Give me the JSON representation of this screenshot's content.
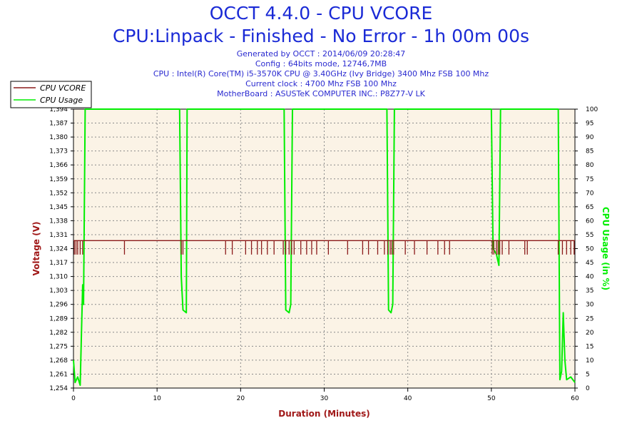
{
  "header": {
    "title": "OCCT 4.4.0 - CPU VCORE",
    "subtitle": "CPU:Linpack - Finished - No Error - 1h 00m 00s",
    "info_lines": [
      "Generated by OCCT : 2014/06/09 20:28:47",
      "Config : 64bits mode, 12746,7MB",
      "CPU : Intel(R) Core(TM) i5-3570K CPU @ 3.40GHz (Ivy Bridge) 3400 Mhz FSB 100 Mhz",
      "Current clock : 4700 Mhz FSB 100 Mhz",
      "MotherBoard : ASUSTeK COMPUTER INC.: P8Z77-V LK"
    ]
  },
  "colors": {
    "vcore": "#8b1a1a",
    "usage": "#00ee00",
    "plot_bg": "#fbf3e6",
    "grid": "#8a8a8a",
    "title": "#1a2ad6"
  },
  "chart_data": {
    "type": "line",
    "title": "OCCT 4.4.0 - CPU VCORE",
    "xlabel": "Duration (Minutes)",
    "ylabel_left": "Voltage (V)",
    "ylabel_right": "CPU Usage (in %)",
    "xlim": [
      0,
      60
    ],
    "ylim_left": [
      1.254,
      1.394
    ],
    "ylim_right": [
      0,
      100
    ],
    "x_ticks": [
      "0",
      "10",
      "20",
      "30",
      "40",
      "50",
      "60"
    ],
    "y_left_ticks": [
      "1,254",
      "1,261",
      "1,268",
      "1,275",
      "1,282",
      "1,289",
      "1,296",
      "1,303",
      "1,310",
      "1,317",
      "1,324",
      "1,331",
      "1,338",
      "1,345",
      "1,352",
      "1,359",
      "1,366",
      "1,373",
      "1,380",
      "1,387",
      "1,394"
    ],
    "y_right_ticks": [
      "0",
      "5",
      "10",
      "15",
      "20",
      "25",
      "30",
      "35",
      "40",
      "45",
      "50",
      "55",
      "60",
      "65",
      "70",
      "75",
      "80",
      "85",
      "90",
      "95",
      "100"
    ],
    "grid": true,
    "legend": [
      "CPU VCORE",
      "CPU Usage"
    ],
    "legend_position": "top-left",
    "series": [
      {
        "name": "CPU VCORE",
        "axis": "left",
        "baseline": 1.328,
        "drop_to": 1.321,
        "drops_minutes": [
          0.1,
          0.3,
          0.5,
          0.8,
          1.1,
          6.1,
          12.9,
          13.1,
          18.2,
          19.0,
          20.6,
          21.3,
          22.0,
          22.5,
          23.2,
          24.0,
          25.1,
          25.4,
          25.8,
          26.1,
          26.4,
          27.2,
          27.9,
          28.5,
          29.1,
          30.5,
          32.8,
          34.6,
          35.3,
          36.4,
          37.2,
          37.6,
          37.9,
          38.1,
          38.3,
          39.7,
          40.8,
          42.3,
          43.6,
          44.4,
          45.0,
          50.1,
          50.3,
          50.6,
          50.8,
          51.0,
          51.3,
          52.1,
          54.0,
          54.3,
          58.0,
          58.5,
          59.0,
          59.5,
          59.9
        ]
      },
      {
        "name": "CPU Usage",
        "axis": "right",
        "points": [
          [
            0.0,
            10
          ],
          [
            0.2,
            2
          ],
          [
            0.5,
            4
          ],
          [
            0.8,
            1
          ],
          [
            1.0,
            25
          ],
          [
            1.1,
            37
          ],
          [
            1.2,
            30
          ],
          [
            1.4,
            100
          ],
          [
            12.7,
            100
          ],
          [
            12.9,
            40
          ],
          [
            13.1,
            28
          ],
          [
            13.5,
            27
          ],
          [
            13.6,
            100
          ],
          [
            25.2,
            100
          ],
          [
            25.4,
            28
          ],
          [
            25.8,
            27
          ],
          [
            26.0,
            30
          ],
          [
            26.2,
            100
          ],
          [
            37.5,
            100
          ],
          [
            37.7,
            28
          ],
          [
            38.0,
            27
          ],
          [
            38.2,
            30
          ],
          [
            38.4,
            100
          ],
          [
            50.0,
            100
          ],
          [
            50.2,
            50
          ],
          [
            50.6,
            48
          ],
          [
            50.9,
            44
          ],
          [
            51.1,
            100
          ],
          [
            58.0,
            100
          ],
          [
            58.2,
            3
          ],
          [
            58.4,
            6
          ],
          [
            58.6,
            27
          ],
          [
            58.8,
            10
          ],
          [
            59.0,
            3
          ],
          [
            59.5,
            4
          ],
          [
            60.0,
            2
          ]
        ]
      }
    ]
  }
}
